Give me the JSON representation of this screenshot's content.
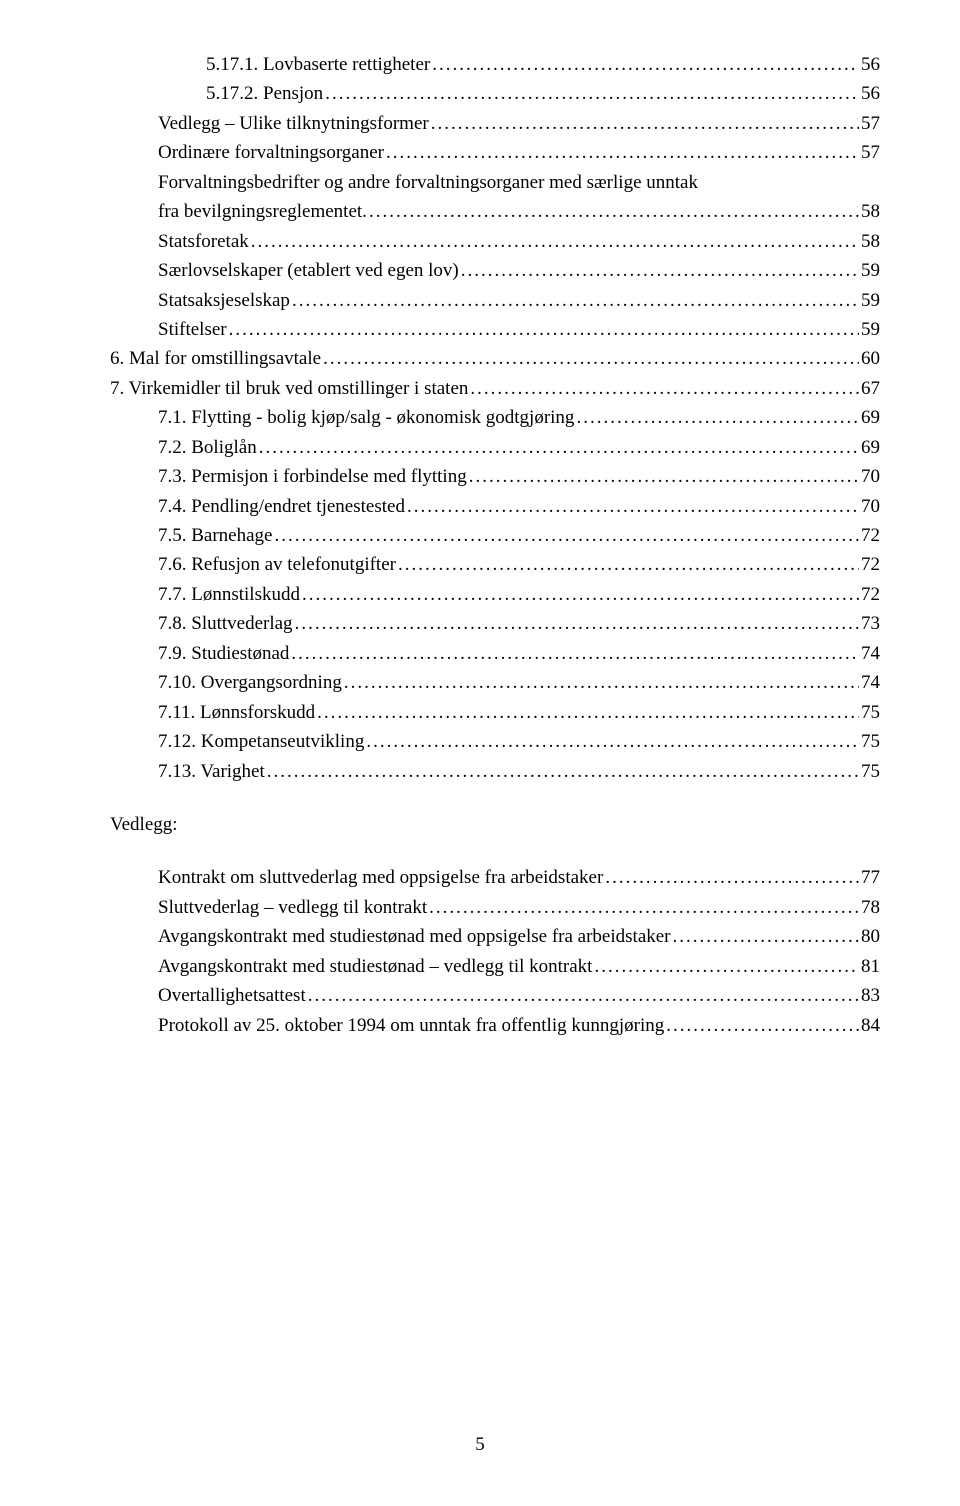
{
  "entries": [
    {
      "indent": 2,
      "label": "5.17.1.  Lovbaserte rettigheter",
      "page": "56"
    },
    {
      "indent": 2,
      "label": "5.17.2.  Pensjon",
      "page": "56"
    },
    {
      "indent": 1,
      "label": "Vedlegg – Ulike tilknytningsformer",
      "page": "57"
    },
    {
      "indent": 1,
      "label": "Ordinære forvaltningsorganer",
      "page": "57"
    },
    {
      "indent": 1,
      "label": "Forvaltningsbedrifter og andre forvaltningsorganer med særlige unntak fra bevilgningsreglementet.",
      "page": "58",
      "wrap": true
    },
    {
      "indent": 1,
      "label": "Statsforetak",
      "page": "58"
    },
    {
      "indent": 1,
      "label": "Særlovselskaper (etablert ved egen lov)",
      "page": "59"
    },
    {
      "indent": 1,
      "label": "Statsaksjeselskap",
      "page": "59"
    },
    {
      "indent": 1,
      "label": "Stiftelser",
      "page": "59"
    },
    {
      "indent": 0,
      "label": "6. Mal for omstillingsavtale",
      "page": "60"
    },
    {
      "indent": 0,
      "label": "7. Virkemidler til bruk ved omstillinger i staten",
      "page": "67"
    },
    {
      "indent": 1,
      "label": "7.1.   Flytting - bolig kjøp/salg - økonomisk godtgjøring",
      "page": "69"
    },
    {
      "indent": 1,
      "label": "7.2.   Boliglån",
      "page": "69"
    },
    {
      "indent": 1,
      "label": "7.3.   Permisjon i forbindelse med flytting",
      "page": "70"
    },
    {
      "indent": 1,
      "label": "7.4.   Pendling/endret tjenestested",
      "page": "70"
    },
    {
      "indent": 1,
      "label": "7.5.   Barnehage",
      "page": "72"
    },
    {
      "indent": 1,
      "label": "7.6.   Refusjon av telefonutgifter",
      "page": "72"
    },
    {
      "indent": 1,
      "label": "7.7.   Lønnstilskudd",
      "page": "72"
    },
    {
      "indent": 1,
      "label": "7.8.   Sluttvederlag",
      "page": "73"
    },
    {
      "indent": 1,
      "label": "7.9.   Studiestønad",
      "page": "74"
    },
    {
      "indent": 1,
      "label": "7.10. Overgangsordning",
      "page": "74"
    },
    {
      "indent": 1,
      "label": "7.11. Lønnsforskudd",
      "page": "75"
    },
    {
      "indent": 1,
      "label": "7.12. Kompetanseutvikling",
      "page": "75"
    },
    {
      "indent": 1,
      "label": "7.13. Varighet",
      "page": "75"
    }
  ],
  "vedlegg_label": "Vedlegg:",
  "vedlegg_entries": [
    {
      "label": "Kontrakt om sluttvederlag med oppsigelse fra arbeidstaker",
      "page": "77"
    },
    {
      "label": "Sluttvederlag – vedlegg til kontrakt",
      "page": "78"
    },
    {
      "label": "Avgangskontrakt med studiestønad med oppsigelse fra arbeidstaker",
      "page": "80"
    },
    {
      "label": "Avgangskontrakt med studiestønad – vedlegg til kontrakt",
      "page": "81"
    },
    {
      "label": "Overtallighetsattest",
      "page": "83"
    },
    {
      "label": "Protokoll av 25. oktober 1994 om unntak fra offentlig kunngjøring",
      "page": "84"
    }
  ],
  "page_number": "5"
}
